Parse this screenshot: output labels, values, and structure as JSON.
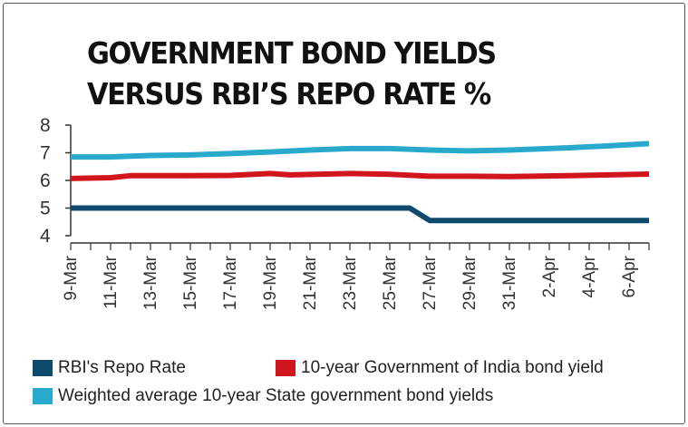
{
  "title_lines": [
    "GOVERNMENT BOND YIELDS",
    "VERSUS RBI’S REPO RATE %"
  ],
  "legend": [
    {
      "label": "RBI's Repo Rate",
      "color": "#0d4a6b"
    },
    {
      "label": "10-year Government of India bond yield",
      "color": "#d0151d"
    },
    {
      "label": "Weighted average 10-year State government bond yields",
      "color": "#29a9cc"
    }
  ],
  "chart_data": {
    "type": "line",
    "x_tick_labels": [
      "9-Mar",
      "11-Mar",
      "13-Mar",
      "15-Mar",
      "17-Mar",
      "19-Mar",
      "21-Mar",
      "23-Mar",
      "25-Mar",
      "27-Mar",
      "29-Mar",
      "31-Mar",
      "2-Apr",
      "4-Apr",
      "6-Apr"
    ],
    "y_ticks": [
      4,
      5,
      6,
      7,
      8
    ],
    "ylim": [
      4,
      8
    ],
    "x_range": [
      "9-Mar",
      "7-Apr"
    ],
    "grid": false,
    "legend_position": "bottom",
    "series": [
      {
        "name": "RBI's Repo Rate",
        "color": "#0d4a6b",
        "points": [
          [
            "9-Mar",
            5.0
          ],
          [
            "26-Mar",
            5.0
          ],
          [
            "27-Mar",
            4.55
          ],
          [
            "7-Apr",
            4.55
          ]
        ]
      },
      {
        "name": "10-year Government of India bond yield",
        "color": "#d0151d",
        "points": [
          [
            "9-Mar",
            6.07
          ],
          [
            "11-Mar",
            6.1
          ],
          [
            "12-Mar",
            6.17
          ],
          [
            "15-Mar",
            6.17
          ],
          [
            "17-Mar",
            6.18
          ],
          [
            "19-Mar",
            6.25
          ],
          [
            "20-Mar",
            6.2
          ],
          [
            "23-Mar",
            6.25
          ],
          [
            "25-Mar",
            6.22
          ],
          [
            "27-Mar",
            6.15
          ],
          [
            "29-Mar",
            6.15
          ],
          [
            "31-Mar",
            6.14
          ],
          [
            "3-Apr",
            6.17
          ],
          [
            "7-Apr",
            6.23
          ]
        ]
      },
      {
        "name": "Weighted average 10-year State government bond yields",
        "color": "#29a9cc",
        "points": [
          [
            "9-Mar",
            6.85
          ],
          [
            "11-Mar",
            6.85
          ],
          [
            "13-Mar",
            6.9
          ],
          [
            "15-Mar",
            6.92
          ],
          [
            "17-Mar",
            6.97
          ],
          [
            "19-Mar",
            7.03
          ],
          [
            "21-Mar",
            7.1
          ],
          [
            "23-Mar",
            7.15
          ],
          [
            "25-Mar",
            7.15
          ],
          [
            "27-Mar",
            7.1
          ],
          [
            "29-Mar",
            7.07
          ],
          [
            "31-Mar",
            7.1
          ],
          [
            "3-Apr",
            7.18
          ],
          [
            "5-Apr",
            7.25
          ],
          [
            "7-Apr",
            7.33
          ]
        ]
      }
    ]
  }
}
